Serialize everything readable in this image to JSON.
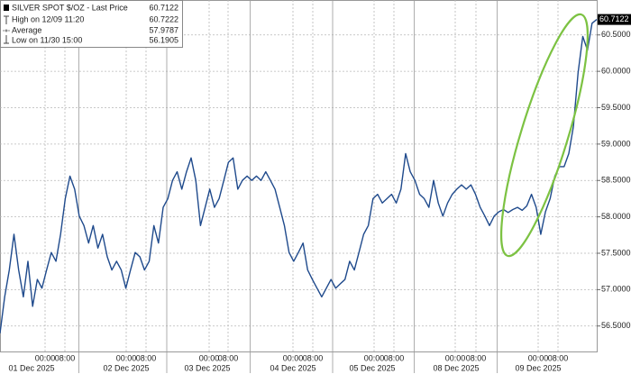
{
  "chart_data": {
    "type": "line",
    "color": "#1f4a8c",
    "legend": [
      {
        "label": "SILVER SPOT $/OZ - Last Price",
        "value": 60.7122
      },
      {
        "label": "High on 12/09 11:20",
        "value": 60.7222
      },
      {
        "label": "Average",
        "value": 57.9787
      },
      {
        "label": "Low on 11/30 15:00",
        "value": 56.1905
      }
    ],
    "values": [
      56.4,
      56.9,
      57.27,
      57.76,
      57.27,
      56.9,
      57.39,
      56.77,
      57.14,
      57.02,
      57.27,
      57.51,
      57.39,
      57.76,
      58.25,
      58.56,
      58.38,
      58.01,
      57.88,
      57.64,
      57.88,
      57.57,
      57.76,
      57.45,
      57.27,
      57.39,
      57.27,
      57.02,
      57.27,
      57.51,
      57.45,
      57.27,
      57.39,
      57.88,
      57.64,
      58.13,
      58.25,
      58.5,
      58.62,
      58.38,
      58.62,
      58.81,
      58.5,
      57.88,
      58.13,
      58.38,
      58.13,
      58.25,
      58.5,
      58.75,
      58.81,
      58.38,
      58.5,
      58.56,
      58.5,
      58.56,
      58.5,
      58.62,
      58.5,
      58.38,
      58.13,
      57.88,
      57.51,
      57.39,
      57.51,
      57.64,
      57.27,
      57.14,
      57.02,
      56.9,
      57.02,
      57.14,
      57.02,
      57.08,
      57.14,
      57.39,
      57.27,
      57.51,
      57.76,
      57.88,
      58.25,
      58.31,
      58.19,
      58.25,
      58.31,
      58.19,
      58.38,
      58.87,
      58.62,
      58.5,
      58.31,
      58.25,
      58.13,
      58.5,
      58.19,
      58.01,
      58.19,
      58.31,
      58.38,
      58.44,
      58.38,
      58.44,
      58.31,
      58.13,
      58.01,
      57.88,
      58.01,
      58.07,
      58.1,
      58.06,
      58.1,
      58.13,
      58.09,
      58.15,
      58.31,
      58.13,
      57.76,
      58.07,
      58.25,
      58.56,
      58.69,
      58.69,
      58.87,
      59.24,
      59.98,
      60.48,
      60.29,
      60.66,
      60.7122
    ],
    "xlim": [
      0,
      132.4
    ],
    "ylim": [
      56.15,
      60.98
    ],
    "yticks": [
      {
        "value": 56.5,
        "label": "56.5000"
      },
      {
        "value": 57.0,
        "label": "57.0000"
      },
      {
        "value": 57.5,
        "label": "57.5000"
      },
      {
        "value": 58.0,
        "label": "58.0000"
      },
      {
        "value": 58.5,
        "label": "58.5000"
      },
      {
        "value": 59.0,
        "label": "59.0000"
      },
      {
        "value": 59.5,
        "label": "59.5000"
      },
      {
        "value": 60.0,
        "label": "60.0000"
      },
      {
        "value": 60.5,
        "label": "60.5000"
      }
    ],
    "xticks": [
      {
        "value": 10,
        "label": "00:00"
      },
      {
        "value": 14.4,
        "label": "08:00"
      },
      {
        "value": 28,
        "label": "00:00"
      },
      {
        "value": 32.4,
        "label": "08:00"
      },
      {
        "value": 46.4,
        "label": "00:00"
      },
      {
        "value": 50.6,
        "label": "08:00"
      },
      {
        "value": 65,
        "label": "00:00"
      },
      {
        "value": 69.4,
        "label": "08:00"
      },
      {
        "value": 83,
        "label": "00:00"
      },
      {
        "value": 87.4,
        "label": "08:00"
      },
      {
        "value": 101,
        "label": "00:00"
      },
      {
        "value": 105.6,
        "label": "08:00"
      },
      {
        "value": 119.4,
        "label": "00:00"
      },
      {
        "value": 123.8,
        "label": "08:00"
      }
    ],
    "date_labels": [
      {
        "value": 7,
        "label": "01 Dec 2025"
      },
      {
        "value": 28,
        "label": "02 Dec 2025"
      },
      {
        "value": 46,
        "label": "03 Dec 2025"
      },
      {
        "value": 65,
        "label": "04 Dec 2025"
      },
      {
        "value": 82.6,
        "label": "05 Dec 2025"
      },
      {
        "value": 101.2,
        "label": "08 Dec 2025"
      },
      {
        "value": 119.4,
        "label": "09 Dec 2025"
      }
    ],
    "grid": true
  }
}
